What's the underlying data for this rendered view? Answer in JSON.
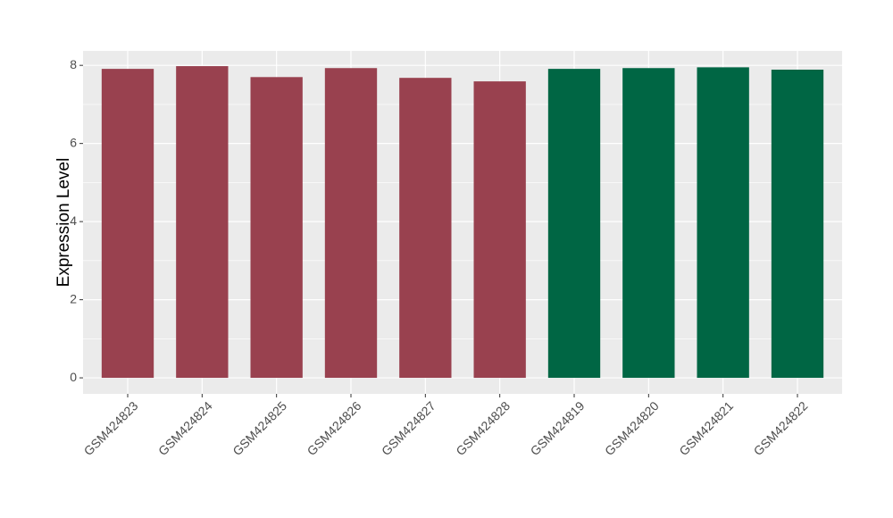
{
  "chart_data": {
    "type": "bar",
    "y_label": "Expression Level",
    "categories": [
      "GSM424823",
      "GSM424824",
      "GSM424825",
      "GSM424826",
      "GSM424827",
      "GSM424828",
      "GSM424819",
      "GSM424820",
      "GSM424821",
      "GSM424822"
    ],
    "values": [
      7.91,
      7.98,
      7.7,
      7.93,
      7.68,
      7.59,
      7.91,
      7.93,
      7.95,
      7.89
    ],
    "colors": [
      "#99414f",
      "#99414f",
      "#99414f",
      "#99414f",
      "#99414f",
      "#99414f",
      "#006644",
      "#006644",
      "#006644",
      "#006644"
    ],
    "ylim": [
      -0.41,
      8.37
    ],
    "yticks": [
      0,
      2,
      4,
      6,
      8
    ],
    "grid": true
  }
}
